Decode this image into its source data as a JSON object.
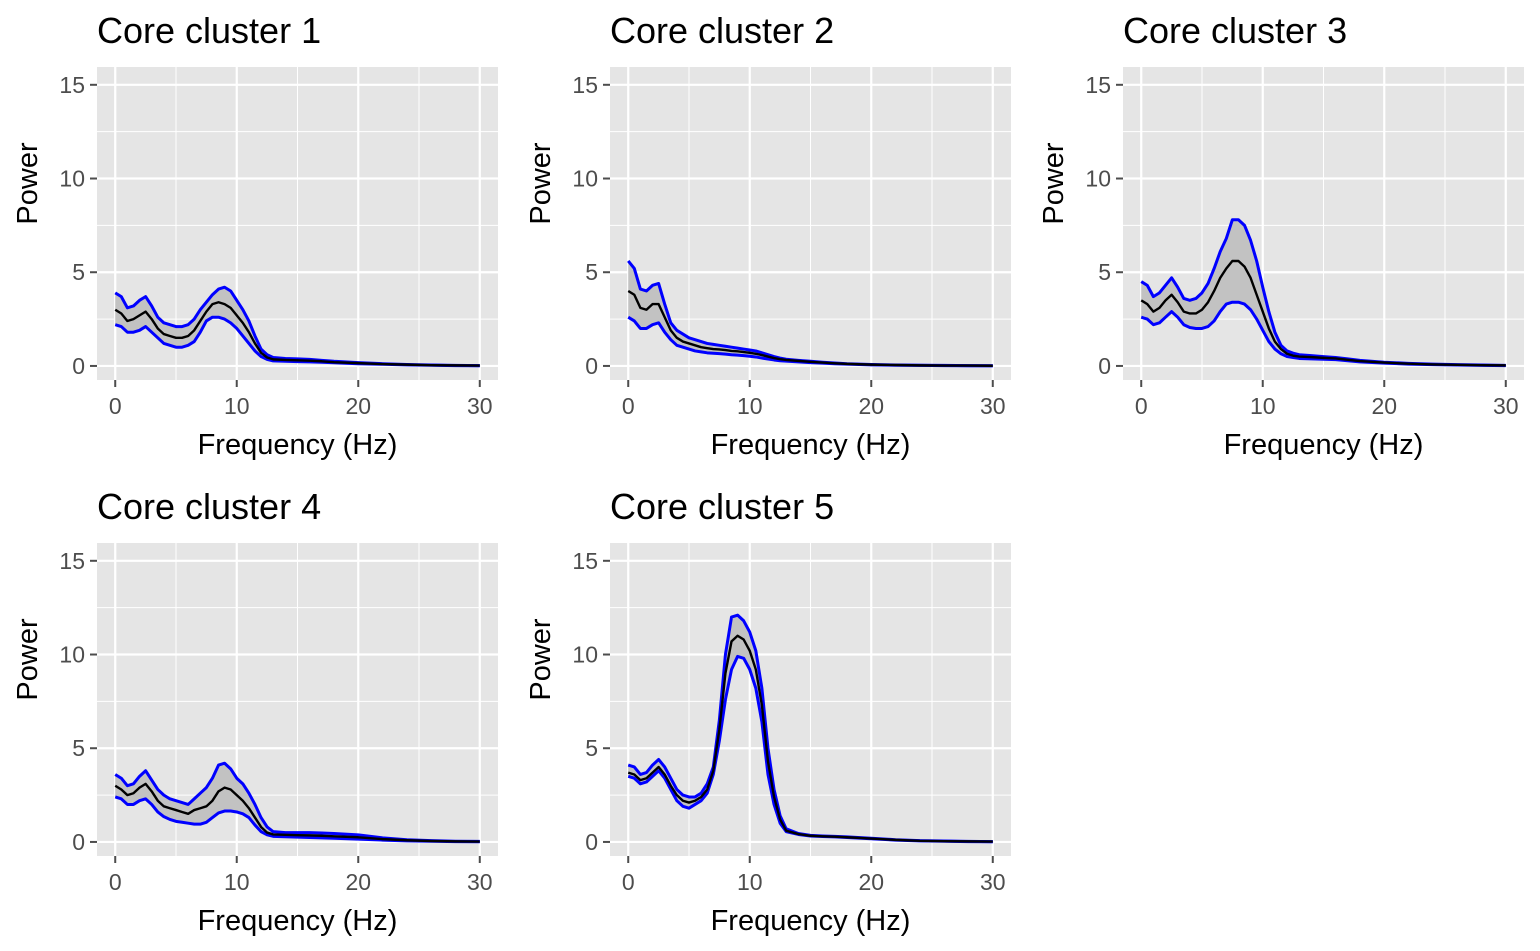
{
  "figure": {
    "panel_background": "#e5e5e5",
    "grid_color": "#ffffff",
    "ribbon_fill": "#c2c2c2",
    "bound_color": "#0000ff",
    "mean_color": "#000000",
    "tick_color": "#4d4d4d"
  },
  "chart_data": [
    {
      "type": "area",
      "title": "Core cluster 1",
      "xlabel": "Frequency (Hz)",
      "ylabel": "Power",
      "xlim": [
        0,
        30
      ],
      "ylim": [
        0,
        15
      ],
      "xticks": [
        0,
        10,
        20,
        30
      ],
      "yticks": [
        0,
        5,
        10,
        15
      ],
      "grid": true,
      "x": [
        0,
        0.5,
        1,
        1.5,
        2,
        2.5,
        3,
        3.5,
        4,
        4.5,
        5,
        5.5,
        6,
        6.5,
        7,
        7.5,
        8,
        8.5,
        9,
        9.5,
        10,
        10.5,
        11,
        11.5,
        12,
        12.5,
        13,
        14,
        15,
        16,
        17,
        18,
        20,
        22,
        24,
        26,
        28,
        30
      ],
      "series": [
        {
          "values": [
            3.9,
            3.7,
            3.1,
            3.2,
            3.5,
            3.7,
            3.2,
            2.6,
            2.3,
            2.2,
            2.1,
            2.1,
            2.2,
            2.5,
            3.0,
            3.4,
            3.8,
            4.1,
            4.2,
            4.0,
            3.5,
            3.0,
            2.4,
            1.6,
            0.9,
            0.6,
            0.45,
            0.4,
            0.38,
            0.35,
            0.3,
            0.25,
            0.18,
            0.12,
            0.08,
            0.05,
            0.03,
            0.02
          ]
        },
        {
          "values": [
            3.0,
            2.8,
            2.4,
            2.5,
            2.7,
            2.9,
            2.5,
            2.0,
            1.7,
            1.6,
            1.5,
            1.5,
            1.6,
            1.9,
            2.4,
            2.9,
            3.3,
            3.4,
            3.3,
            3.1,
            2.7,
            2.3,
            1.8,
            1.2,
            0.7,
            0.45,
            0.35,
            0.32,
            0.3,
            0.28,
            0.25,
            0.2,
            0.15,
            0.1,
            0.07,
            0.04,
            0.03,
            0.02
          ]
        },
        {
          "values": [
            2.2,
            2.1,
            1.8,
            1.8,
            1.9,
            2.1,
            1.8,
            1.5,
            1.2,
            1.1,
            1.0,
            1.0,
            1.1,
            1.3,
            1.8,
            2.4,
            2.6,
            2.6,
            2.5,
            2.3,
            2.0,
            1.6,
            1.2,
            0.8,
            0.5,
            0.35,
            0.27,
            0.25,
            0.23,
            0.22,
            0.2,
            0.17,
            0.12,
            0.09,
            0.06,
            0.04,
            0.02,
            0.01
          ]
        }
      ]
    },
    {
      "type": "area",
      "title": "Core cluster 2",
      "xlabel": "Frequency (Hz)",
      "ylabel": "Power",
      "xlim": [
        0,
        30
      ],
      "ylim": [
        0,
        15
      ],
      "xticks": [
        0,
        10,
        20,
        30
      ],
      "yticks": [
        0,
        5,
        10,
        15
      ],
      "grid": true,
      "x": [
        0,
        0.5,
        1,
        1.5,
        2,
        2.5,
        3,
        3.5,
        4,
        4.5,
        5,
        5.5,
        6,
        6.5,
        7,
        7.5,
        8,
        8.5,
        9,
        9.5,
        10,
        10.5,
        11,
        11.5,
        12,
        12.5,
        13,
        14,
        15,
        16,
        17,
        18,
        20,
        22,
        24,
        26,
        28,
        30
      ],
      "series": [
        {
          "values": [
            5.6,
            5.2,
            4.1,
            4.0,
            4.3,
            4.4,
            3.3,
            2.3,
            1.9,
            1.7,
            1.5,
            1.4,
            1.3,
            1.2,
            1.15,
            1.1,
            1.05,
            1.0,
            0.95,
            0.9,
            0.85,
            0.8,
            0.7,
            0.6,
            0.5,
            0.42,
            0.36,
            0.3,
            0.25,
            0.2,
            0.16,
            0.12,
            0.08,
            0.05,
            0.04,
            0.03,
            0.02,
            0.01
          ]
        },
        {
          "values": [
            4.0,
            3.8,
            3.1,
            3.0,
            3.3,
            3.3,
            2.6,
            1.9,
            1.5,
            1.3,
            1.2,
            1.1,
            1.0,
            0.95,
            0.9,
            0.88,
            0.85,
            0.8,
            0.78,
            0.74,
            0.7,
            0.65,
            0.58,
            0.5,
            0.42,
            0.36,
            0.32,
            0.27,
            0.22,
            0.18,
            0.14,
            0.11,
            0.07,
            0.05,
            0.03,
            0.02,
            0.02,
            0.01
          ]
        },
        {
          "values": [
            2.6,
            2.4,
            2.0,
            2.0,
            2.2,
            2.3,
            1.8,
            1.4,
            1.1,
            1.0,
            0.9,
            0.8,
            0.75,
            0.7,
            0.68,
            0.66,
            0.63,
            0.6,
            0.58,
            0.55,
            0.52,
            0.48,
            0.42,
            0.37,
            0.32,
            0.28,
            0.26,
            0.22,
            0.18,
            0.15,
            0.12,
            0.1,
            0.06,
            0.04,
            0.03,
            0.02,
            0.01,
            0.01
          ]
        }
      ]
    },
    {
      "type": "area",
      "title": "Core cluster 3",
      "xlabel": "Frequency (Hz)",
      "ylabel": "Power",
      "xlim": [
        0,
        30
      ],
      "ylim": [
        0,
        15
      ],
      "xticks": [
        0,
        10,
        20,
        30
      ],
      "yticks": [
        0,
        5,
        10,
        15
      ],
      "grid": true,
      "x": [
        0,
        0.5,
        1,
        1.5,
        2,
        2.5,
        3,
        3.5,
        4,
        4.5,
        5,
        5.5,
        6,
        6.5,
        7,
        7.5,
        8,
        8.5,
        9,
        9.5,
        10,
        10.5,
        11,
        11.5,
        12,
        12.5,
        13,
        14,
        15,
        16,
        17,
        18,
        20,
        22,
        24,
        26,
        28,
        30
      ],
      "series": [
        {
          "values": [
            4.5,
            4.3,
            3.7,
            3.9,
            4.3,
            4.7,
            4.2,
            3.6,
            3.5,
            3.6,
            3.9,
            4.4,
            5.2,
            6.1,
            6.8,
            7.8,
            7.8,
            7.5,
            6.7,
            5.6,
            4.2,
            2.9,
            1.8,
            1.1,
            0.8,
            0.68,
            0.6,
            0.55,
            0.5,
            0.45,
            0.38,
            0.3,
            0.2,
            0.14,
            0.1,
            0.07,
            0.05,
            0.03
          ]
        },
        {
          "values": [
            3.5,
            3.3,
            2.9,
            3.1,
            3.5,
            3.8,
            3.4,
            2.9,
            2.8,
            2.8,
            3.0,
            3.4,
            4.0,
            4.7,
            5.2,
            5.6,
            5.6,
            5.3,
            4.7,
            3.8,
            2.9,
            2.0,
            1.3,
            0.9,
            0.65,
            0.55,
            0.5,
            0.47,
            0.43,
            0.4,
            0.33,
            0.26,
            0.18,
            0.12,
            0.08,
            0.06,
            0.04,
            0.03
          ]
        },
        {
          "values": [
            2.6,
            2.5,
            2.2,
            2.3,
            2.6,
            2.9,
            2.6,
            2.2,
            2.05,
            2.0,
            2.0,
            2.1,
            2.4,
            2.9,
            3.3,
            3.4,
            3.4,
            3.3,
            3.0,
            2.5,
            1.9,
            1.3,
            0.9,
            0.65,
            0.5,
            0.45,
            0.4,
            0.38,
            0.36,
            0.34,
            0.28,
            0.22,
            0.15,
            0.1,
            0.07,
            0.05,
            0.03,
            0.02
          ]
        }
      ]
    },
    {
      "type": "area",
      "title": "Core cluster 4",
      "xlabel": "Frequency (Hz)",
      "ylabel": "Power",
      "xlim": [
        0,
        30
      ],
      "ylim": [
        0,
        15
      ],
      "xticks": [
        0,
        10,
        20,
        30
      ],
      "yticks": [
        0,
        5,
        10,
        15
      ],
      "grid": true,
      "x": [
        0,
        0.5,
        1,
        1.5,
        2,
        2.5,
        3,
        3.5,
        4,
        4.5,
        5,
        5.5,
        6,
        6.5,
        7,
        7.5,
        8,
        8.5,
        9,
        9.5,
        10,
        10.5,
        11,
        11.5,
        12,
        12.5,
        13,
        14,
        15,
        16,
        17,
        18,
        20,
        22,
        24,
        26,
        28,
        30
      ],
      "series": [
        {
          "values": [
            3.6,
            3.4,
            3.0,
            3.1,
            3.5,
            3.8,
            3.3,
            2.8,
            2.5,
            2.3,
            2.2,
            2.1,
            2.0,
            2.3,
            2.6,
            2.9,
            3.4,
            4.1,
            4.2,
            3.9,
            3.4,
            3.1,
            2.6,
            2.0,
            1.3,
            0.8,
            0.55,
            0.5,
            0.5,
            0.5,
            0.48,
            0.45,
            0.38,
            0.22,
            0.12,
            0.07,
            0.04,
            0.03
          ]
        },
        {
          "values": [
            3.0,
            2.8,
            2.5,
            2.6,
            2.9,
            3.1,
            2.7,
            2.2,
            1.9,
            1.8,
            1.7,
            1.6,
            1.5,
            1.7,
            1.8,
            1.9,
            2.2,
            2.7,
            2.9,
            2.8,
            2.5,
            2.2,
            1.8,
            1.3,
            0.8,
            0.5,
            0.4,
            0.38,
            0.36,
            0.35,
            0.33,
            0.3,
            0.25,
            0.15,
            0.09,
            0.05,
            0.03,
            0.02
          ]
        },
        {
          "values": [
            2.4,
            2.3,
            2.0,
            2.0,
            2.2,
            2.3,
            2.0,
            1.6,
            1.35,
            1.2,
            1.1,
            1.05,
            1.0,
            0.95,
            0.95,
            1.05,
            1.3,
            1.55,
            1.65,
            1.65,
            1.6,
            1.5,
            1.3,
            0.9,
            0.55,
            0.38,
            0.3,
            0.28,
            0.26,
            0.24,
            0.22,
            0.2,
            0.15,
            0.1,
            0.06,
            0.04,
            0.02,
            0.01
          ]
        }
      ]
    },
    {
      "type": "area",
      "title": "Core cluster 5",
      "xlabel": "Frequency (Hz)",
      "ylabel": "Power",
      "xlim": [
        0,
        30
      ],
      "ylim": [
        0,
        15
      ],
      "xticks": [
        0,
        10,
        20,
        30
      ],
      "yticks": [
        0,
        5,
        10,
        15
      ],
      "grid": true,
      "x": [
        0,
        0.5,
        1,
        1.5,
        2,
        2.5,
        3,
        3.5,
        4,
        4.5,
        5,
        5.5,
        6,
        6.5,
        7,
        7.5,
        8,
        8.5,
        9,
        9.5,
        10,
        10.5,
        11,
        11.5,
        12,
        12.5,
        13,
        14,
        15,
        16,
        17,
        18,
        20,
        22,
        24,
        26,
        28,
        30
      ],
      "series": [
        {
          "values": [
            4.1,
            4.0,
            3.6,
            3.7,
            4.1,
            4.4,
            4.0,
            3.4,
            2.8,
            2.5,
            2.4,
            2.4,
            2.6,
            3.1,
            4.0,
            6.5,
            10.0,
            12.0,
            12.1,
            11.8,
            11.2,
            10.2,
            8.2,
            5.0,
            2.8,
            1.4,
            0.7,
            0.45,
            0.35,
            0.32,
            0.3,
            0.27,
            0.2,
            0.12,
            0.07,
            0.05,
            0.03,
            0.02
          ]
        },
        {
          "values": [
            3.7,
            3.6,
            3.3,
            3.4,
            3.7,
            4.0,
            3.6,
            3.0,
            2.5,
            2.2,
            2.1,
            2.2,
            2.4,
            2.8,
            3.8,
            6.0,
            9.0,
            10.7,
            11.0,
            10.8,
            10.2,
            9.2,
            7.3,
            4.3,
            2.4,
            1.2,
            0.6,
            0.42,
            0.33,
            0.3,
            0.28,
            0.25,
            0.18,
            0.11,
            0.06,
            0.04,
            0.03,
            0.02
          ]
        },
        {
          "values": [
            3.5,
            3.4,
            3.1,
            3.2,
            3.5,
            3.8,
            3.4,
            2.8,
            2.2,
            1.9,
            1.8,
            2.0,
            2.2,
            2.6,
            3.6,
            5.4,
            7.6,
            9.2,
            9.9,
            9.8,
            9.2,
            8.2,
            6.4,
            3.6,
            2.0,
            1.0,
            0.55,
            0.4,
            0.32,
            0.29,
            0.27,
            0.24,
            0.17,
            0.1,
            0.06,
            0.04,
            0.02,
            0.01
          ]
        }
      ]
    }
  ]
}
